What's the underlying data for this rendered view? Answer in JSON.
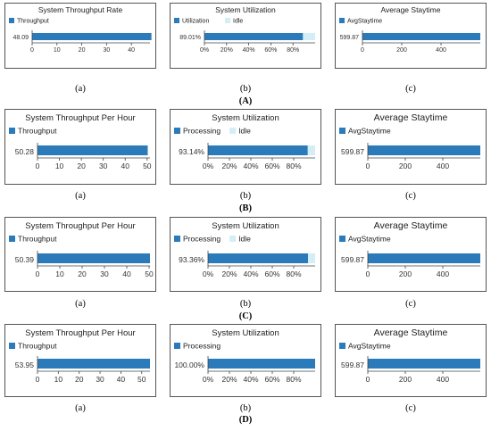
{
  "groups": [
    {
      "label": "(A)",
      "charts": [
        {
          "sub": "(a)",
          "title": "System Throughput Rate",
          "legend": [
            {
              "name": "Throughput",
              "color": "#2b7bba"
            }
          ],
          "value_label": "48.09",
          "value": 48.09,
          "secondary": 0,
          "ticks": [
            "0",
            "10",
            "20",
            "30",
            "40"
          ],
          "tick_values": [
            0,
            10,
            20,
            30,
            40
          ],
          "xmax": 47.5
        },
        {
          "sub": "(b)",
          "title": "System Utilization",
          "legend": [
            {
              "name": "Utilization",
              "color": "#2b7bba"
            },
            {
              "name": "Idle",
              "color": "#d4eef5"
            }
          ],
          "value_label": "89.01%",
          "value": 89.01,
          "secondary": 10.99,
          "ticks": [
            "0%",
            "20%",
            "40%",
            "60%",
            "80%"
          ],
          "tick_values": [
            0,
            20,
            40,
            60,
            80
          ],
          "xmax": 100
        },
        {
          "sub": "(c)",
          "title": "Average Staytime",
          "legend": [
            {
              "name": "AvgStaytime",
              "color": "#2b7bba"
            }
          ],
          "value_label": "599.87",
          "value": 599.87,
          "secondary": 0,
          "ticks": [
            "0",
            "200",
            "400"
          ],
          "tick_values": [
            0,
            200,
            400
          ],
          "xmax": 599.87
        }
      ]
    },
    {
      "label": "(B)",
      "charts": [
        {
          "sub": "(a)",
          "title": "System Throughput Per Hour",
          "legend": [
            {
              "name": "Throughput",
              "color": "#2b7bba"
            }
          ],
          "value_label": "50.28",
          "value": 50.28,
          "secondary": 0,
          "ticks": [
            "0",
            "10",
            "20",
            "30",
            "40",
            "50"
          ],
          "tick_values": [
            0,
            10,
            20,
            30,
            40,
            50
          ],
          "xmax": 51.3
        },
        {
          "sub": "(b)",
          "title": "System Utilization",
          "legend": [
            {
              "name": "Processing",
              "color": "#2b7bba"
            },
            {
              "name": "Idle",
              "color": "#d4eef5"
            }
          ],
          "value_label": "93.14%",
          "value": 93.14,
          "secondary": 6.86,
          "ticks": [
            "0%",
            "20%",
            "40%",
            "60%",
            "80%"
          ],
          "tick_values": [
            0,
            20,
            40,
            60,
            80
          ],
          "xmax": 100
        },
        {
          "sub": "(c)",
          "title": "Average Staytime",
          "legend": [
            {
              "name": "AvgStaytime",
              "color": "#2b7bba"
            }
          ],
          "value_label": "599.87",
          "value": 599.87,
          "secondary": 0,
          "ticks": [
            "0",
            "200",
            "400"
          ],
          "tick_values": [
            0,
            200,
            400
          ],
          "xmax": 599.87
        }
      ]
    },
    {
      "label": "(C)",
      "charts": [
        {
          "sub": "(a)",
          "title": "System Throughput Per Hour",
          "legend": [
            {
              "name": "Throughput",
              "color": "#2b7bba"
            }
          ],
          "value_label": "50.39",
          "value": 50.39,
          "secondary": 0,
          "ticks": [
            "0",
            "10",
            "20",
            "30",
            "40",
            "50"
          ],
          "tick_values": [
            0,
            10,
            20,
            30,
            40,
            50
          ],
          "xmax": 50.39
        },
        {
          "sub": "(b)",
          "title": "System Utilization",
          "legend": [
            {
              "name": "Processing",
              "color": "#2b7bba"
            },
            {
              "name": "Idle",
              "color": "#d4eef5"
            }
          ],
          "value_label": "93.36%",
          "value": 93.36,
          "secondary": 6.64,
          "ticks": [
            "0%",
            "20%",
            "40%",
            "60%",
            "80%"
          ],
          "tick_values": [
            0,
            20,
            40,
            60,
            80
          ],
          "xmax": 100
        },
        {
          "sub": "(c)",
          "title": "Average Staytime",
          "legend": [
            {
              "name": "AvgStaytime",
              "color": "#2b7bba"
            }
          ],
          "value_label": "599.87",
          "value": 599.87,
          "secondary": 0,
          "ticks": [
            "0",
            "200",
            "400"
          ],
          "tick_values": [
            0,
            200,
            400
          ],
          "xmax": 599.87
        }
      ]
    },
    {
      "label": "(D)",
      "charts": [
        {
          "sub": "(a)",
          "title": "System Throughput Per Hour",
          "legend": [
            {
              "name": "Throughput",
              "color": "#2b7bba"
            }
          ],
          "value_label": "53.95",
          "value": 53.95,
          "secondary": 0,
          "ticks": [
            "0",
            "10",
            "20",
            "30",
            "40",
            "50"
          ],
          "tick_values": [
            0,
            10,
            20,
            30,
            40,
            50
          ],
          "xmax": 53.95
        },
        {
          "sub": "(b)",
          "title": "System Utilization",
          "legend": [
            {
              "name": "Processing",
              "color": "#2b7bba"
            }
          ],
          "value_label": "100.00%",
          "value": 100.0,
          "secondary": 0,
          "ticks": [
            "0%",
            "20%",
            "40%",
            "60%",
            "80%"
          ],
          "tick_values": [
            0,
            20,
            40,
            60,
            80
          ],
          "xmax": 100
        },
        {
          "sub": "(c)",
          "title": "Average Staytime",
          "legend": [
            {
              "name": "AvgStaytime",
              "color": "#2b7bba"
            }
          ],
          "value_label": "599.87",
          "value": 599.87,
          "secondary": 0,
          "ticks": [
            "0",
            "200",
            "400"
          ],
          "tick_values": [
            0,
            200,
            400
          ],
          "xmax": 599.87
        }
      ]
    }
  ],
  "chart_data": [
    {
      "type": "bar",
      "title": "System Throughput Rate",
      "series": [
        {
          "name": "Throughput",
          "values": [
            48.09
          ]
        }
      ]
    },
    {
      "type": "bar",
      "title": "System Utilization",
      "series": [
        {
          "name": "Utilization",
          "values": [
            89.01
          ]
        },
        {
          "name": "Idle",
          "values": [
            10.99
          ]
        }
      ]
    },
    {
      "type": "bar",
      "title": "Average Staytime",
      "series": [
        {
          "name": "AvgStaytime",
          "values": [
            599.87
          ]
        }
      ]
    },
    {
      "type": "bar",
      "title": "System Throughput Per Hour",
      "series": [
        {
          "name": "Throughput",
          "values": [
            50.28
          ]
        }
      ]
    },
    {
      "type": "bar",
      "title": "System Utilization",
      "series": [
        {
          "name": "Processing",
          "values": [
            93.14
          ]
        },
        {
          "name": "Idle",
          "values": [
            6.86
          ]
        }
      ]
    },
    {
      "type": "bar",
      "title": "Average Staytime",
      "series": [
        {
          "name": "AvgStaytime",
          "values": [
            599.87
          ]
        }
      ]
    },
    {
      "type": "bar",
      "title": "System Throughput Per Hour",
      "series": [
        {
          "name": "Throughput",
          "values": [
            50.39
          ]
        }
      ]
    },
    {
      "type": "bar",
      "title": "System Utilization",
      "series": [
        {
          "name": "Processing",
          "values": [
            93.36
          ]
        },
        {
          "name": "Idle",
          "values": [
            6.64
          ]
        }
      ]
    },
    {
      "type": "bar",
      "title": "Average Staytime",
      "series": [
        {
          "name": "AvgStaytime",
          "values": [
            599.87
          ]
        }
      ]
    },
    {
      "type": "bar",
      "title": "System Throughput Per Hour",
      "series": [
        {
          "name": "Throughput",
          "values": [
            53.95
          ]
        }
      ]
    },
    {
      "type": "bar",
      "title": "System Utilization",
      "series": [
        {
          "name": "Processing",
          "values": [
            100.0
          ]
        }
      ]
    },
    {
      "type": "bar",
      "title": "Average Staytime",
      "series": [
        {
          "name": "AvgStaytime",
          "values": [
            599.87
          ]
        }
      ]
    }
  ]
}
